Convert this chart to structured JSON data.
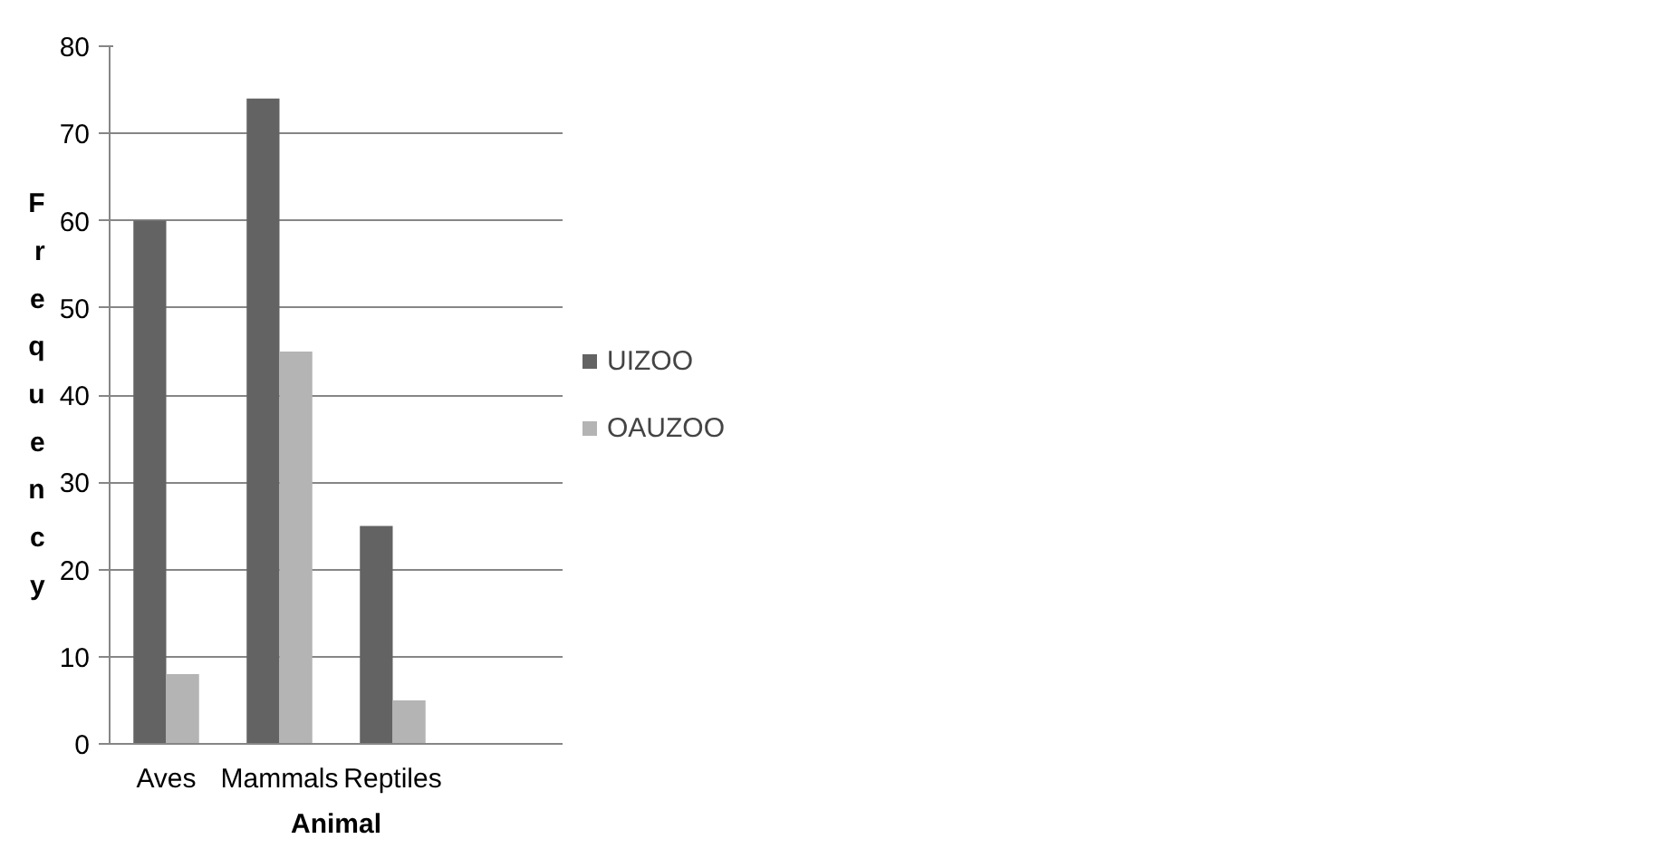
{
  "chart_data": {
    "type": "bar",
    "xlabel": "Animal",
    "ylabel": "Frequency",
    "categories": [
      "Aves",
      "Mammals",
      "Reptiles",
      null
    ],
    "series": [
      {
        "name": "UIZOO",
        "color": "#636363",
        "values": [
          60,
          74,
          25,
          null
        ]
      },
      {
        "name": "OAUZOO",
        "color": "#b4b4b4",
        "values": [
          8,
          45,
          5,
          null
        ]
      }
    ],
    "ylim": [
      0,
      80
    ],
    "yticks": [
      0,
      10,
      20,
      30,
      40,
      50,
      60,
      70,
      80
    ],
    "grid": "y",
    "legend": "right"
  }
}
